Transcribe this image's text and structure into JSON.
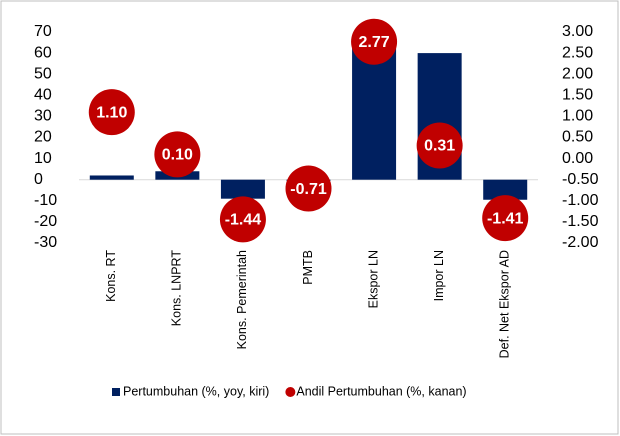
{
  "chart_data": {
    "type": "bar",
    "categories": [
      "Kons. RT",
      "Kons. LNPRT",
      "Kons. Pemerintah",
      "PMTB",
      "Ekspor LN",
      "Impor LN",
      "Def. Net Ekspor AD"
    ],
    "series": [
      {
        "name": "Pertumbuhan (%, yoy, kiri)",
        "type": "bar",
        "color": "#002060",
        "values": [
          2,
          4,
          -9,
          -0.5,
          66,
          60,
          -9.5
        ]
      },
      {
        "name": "Andil Pertumbuhan (%, kanan)",
        "type": "scatter",
        "axis": "y2",
        "color": "#c00000",
        "values": [
          1.1,
          0.1,
          -1.44,
          -0.71,
          2.77,
          0.31,
          -1.41
        ],
        "value_labels": [
          "1.10",
          "0.10",
          "-1.44",
          "-0.71",
          "2.77",
          "0.31",
          "-1.41"
        ]
      }
    ],
    "ylim": [
      -30,
      70
    ],
    "yticks": [
      -30,
      -20,
      -10,
      0,
      10,
      20,
      30,
      40,
      50,
      60,
      70
    ],
    "y2lim": [
      -2,
      3
    ],
    "y2ticks": [
      {
        "value": -2,
        "label": "-2.00"
      },
      {
        "value": -1.5,
        "label": "-1.50"
      },
      {
        "value": -1,
        "label": "-1.00"
      },
      {
        "value": -0.5,
        "label": "-0.50"
      },
      {
        "value": 0,
        "label": "0.00"
      },
      {
        "value": 0.5,
        "label": "0.50"
      },
      {
        "value": 1,
        "label": "1.00"
      },
      {
        "value": 1.5,
        "label": "1.50"
      },
      {
        "value": 2,
        "label": "2.00"
      },
      {
        "value": 2.5,
        "label": "2.50"
      },
      {
        "value": 3,
        "label": "3.00"
      }
    ],
    "legend": "bottom"
  }
}
